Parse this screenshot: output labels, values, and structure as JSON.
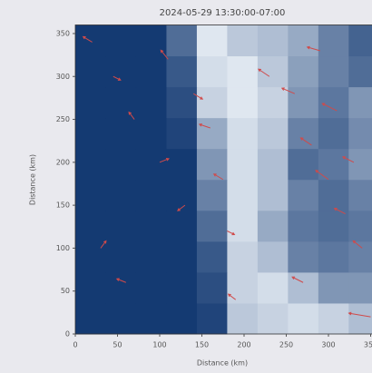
{
  "chart_data": {
    "type": "heatmap",
    "title": "2024-05-29 13:30:00-07:00",
    "x_label": "Distance (km)",
    "y_label": "Distance (km)",
    "xlim": [
      0,
      360
    ],
    "ylim": [
      0,
      360
    ],
    "xticks": [
      0,
      50,
      100,
      150,
      200,
      250,
      300,
      350
    ],
    "yticks": [
      0,
      50,
      100,
      150,
      200,
      250,
      300,
      350
    ],
    "xbins": [
      0,
      36,
      72,
      108,
      144,
      180,
      216,
      252,
      288,
      324,
      360
    ],
    "ybins": [
      0,
      36,
      72,
      108,
      144,
      180,
      216,
      252,
      288,
      324,
      360
    ],
    "color_low": "#08306b",
    "color_high": "#f7fbff",
    "z": [
      [
        0.05,
        0.05,
        0.05,
        0.05,
        0.1,
        0.75,
        0.8,
        0.85,
        0.8,
        0.7
      ],
      [
        0.05,
        0.05,
        0.05,
        0.05,
        0.15,
        0.8,
        0.85,
        0.7,
        0.5,
        0.5
      ],
      [
        0.05,
        0.05,
        0.05,
        0.05,
        0.2,
        0.8,
        0.7,
        0.4,
        0.35,
        0.4
      ],
      [
        0.05,
        0.05,
        0.05,
        0.05,
        0.3,
        0.85,
        0.6,
        0.35,
        0.3,
        0.35
      ],
      [
        0.05,
        0.05,
        0.05,
        0.05,
        0.4,
        0.85,
        0.7,
        0.4,
        0.3,
        0.4
      ],
      [
        0.05,
        0.05,
        0.05,
        0.05,
        0.5,
        0.85,
        0.7,
        0.3,
        0.35,
        0.5
      ],
      [
        0.05,
        0.05,
        0.05,
        0.1,
        0.6,
        0.85,
        0.75,
        0.4,
        0.3,
        0.45
      ],
      [
        0.05,
        0.05,
        0.05,
        0.15,
        0.8,
        0.9,
        0.8,
        0.5,
        0.35,
        0.5
      ],
      [
        0.05,
        0.05,
        0.05,
        0.2,
        0.85,
        0.9,
        0.75,
        0.55,
        0.4,
        0.3
      ],
      [
        0.05,
        0.05,
        0.05,
        0.3,
        0.9,
        0.75,
        0.7,
        0.6,
        0.4,
        0.25
      ]
    ],
    "quiver": {
      "color": "#d04a4a",
      "x": [
        20,
        45,
        70,
        100,
        130,
        30,
        60,
        110,
        140,
        160,
        175,
        180,
        190,
        230,
        260,
        280,
        300,
        320,
        340,
        270,
        290,
        310,
        330,
        350
      ],
      "y": [
        340,
        300,
        250,
        200,
        150,
        100,
        60,
        320,
        280,
        240,
        180,
        120,
        40,
        300,
        280,
        220,
        180,
        140,
        100,
        60,
        330,
        260,
        200,
        20
      ],
      "u": [
        -5,
        4,
        -3,
        5,
        -4,
        3,
        -5,
        -4,
        5,
        -6,
        -5,
        4,
        -4,
        -6,
        -7,
        -6,
        -7,
        -6,
        -5,
        -6,
        -7,
        -8,
        -6,
        -12
      ],
      "v": [
        3,
        -2,
        4,
        2,
        -3,
        4,
        2,
        5,
        -3,
        2,
        3,
        -2,
        3,
        4,
        3,
        4,
        5,
        3,
        4,
        3,
        2,
        4,
        3,
        2
      ]
    }
  }
}
